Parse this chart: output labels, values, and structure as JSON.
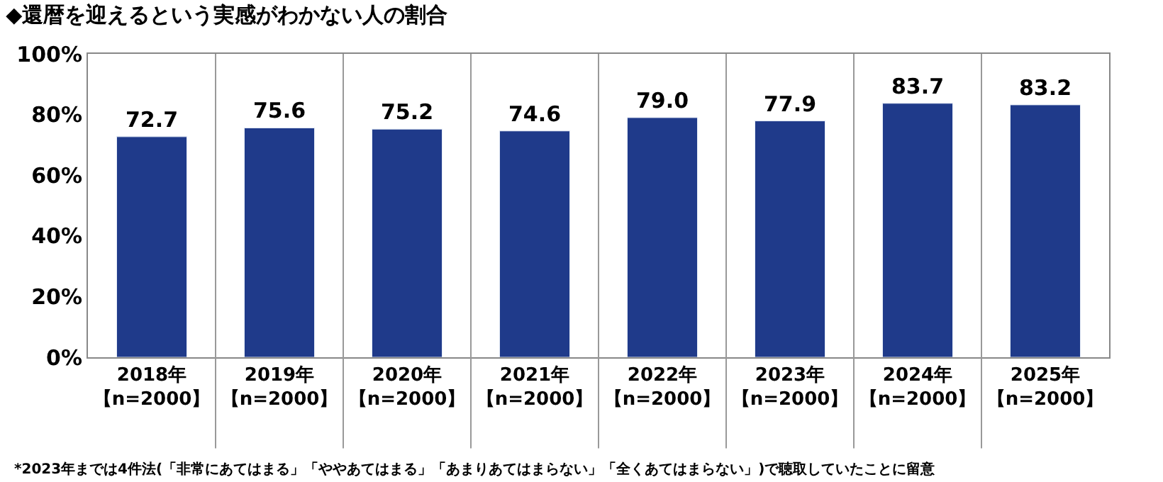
{
  "chart_data": {
    "type": "bar",
    "title": "◆還暦を迎えるという実感がわかない人の割合",
    "categories": [
      "2018年【n=2000】",
      "2019年【n=2000】",
      "2020年【n=2000】",
      "2021年【n=2000】",
      "2022年【n=2000】",
      "2023年【n=2000】",
      "2024年【n=2000】",
      "2025年【n=2000】"
    ],
    "values": [
      72.7,
      75.6,
      75.2,
      74.6,
      79.0,
      77.9,
      83.7,
      83.2
    ],
    "value_labels": [
      "72.7",
      "75.6",
      "75.2",
      "74.6",
      "79.0",
      "77.9",
      "83.7",
      "83.2"
    ],
    "color": "#1f3a8a",
    "ylim": [
      0,
      100
    ],
    "yticks": [
      {
        "value": 0,
        "label": "0%"
      },
      {
        "value": 20,
        "label": "20%"
      },
      {
        "value": 40,
        "label": "40%"
      },
      {
        "value": 60,
        "label": "60%"
      },
      {
        "value": 80,
        "label": "80%"
      },
      {
        "value": 100,
        "label": "100%"
      }
    ],
    "grid": "x",
    "legend": false,
    "annotations": [
      "*2023年までは4件法(「非常にあてはまる」「ややあてはまる」「あまりあてはまらない」「全くあてはまらない」)で聴取していたことに留意"
    ]
  }
}
